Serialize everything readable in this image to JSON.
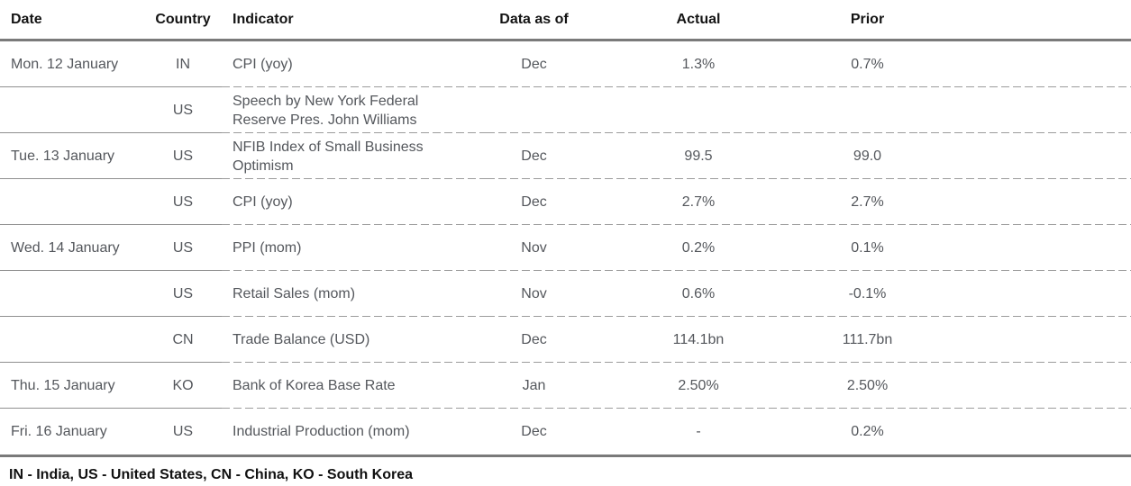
{
  "table": {
    "columns": {
      "date": "Date",
      "country": "Country",
      "indicator": "Indicator",
      "data_as_of": "Data as of",
      "actual": "Actual",
      "prior": "Prior"
    },
    "rows": [
      {
        "date": "Mon. 12 January",
        "country": "IN",
        "indicator": "CPI (yoy)",
        "data_as_of": "Dec",
        "actual": "1.3%",
        "prior": "0.7%"
      },
      {
        "date": "",
        "country": "US",
        "indicator": "Speech by New York Federal Reserve Pres. John Williams",
        "data_as_of": "",
        "actual": "",
        "prior": ""
      },
      {
        "date": "Tue. 13 January",
        "country": "US",
        "indicator": "NFIB Index of Small Business Optimism",
        "data_as_of": "Dec",
        "actual": "99.5",
        "prior": "99.0"
      },
      {
        "date": "",
        "country": "US",
        "indicator": "CPI (yoy)",
        "data_as_of": "Dec",
        "actual": "2.7%",
        "prior": "2.7%"
      },
      {
        "date": "Wed. 14 January",
        "country": "US",
        "indicator": "PPI (mom)",
        "data_as_of": "Nov",
        "actual": "0.2%",
        "prior": "0.1%"
      },
      {
        "date": "",
        "country": "US",
        "indicator": "Retail Sales (mom)",
        "data_as_of": "Nov",
        "actual": "0.6%",
        "prior": "-0.1%"
      },
      {
        "date": "",
        "country": "CN",
        "indicator": "Trade Balance (USD)",
        "data_as_of": "Dec",
        "actual": "114.1bn",
        "prior": "111.7bn"
      },
      {
        "date": "Thu. 15 January",
        "country": "KO",
        "indicator": "Bank of Korea Base Rate",
        "data_as_of": "Jan",
        "actual": "2.50%",
        "prior": "2.50%"
      },
      {
        "date": "Fri. 16 January",
        "country": "US",
        "indicator": "Industrial Production (mom)",
        "data_as_of": "Dec",
        "actual": "-",
        "prior": "0.2%"
      }
    ],
    "footnote": "IN - India, US - United States, CN - China, KO - South Korea"
  },
  "colors": {
    "header_text": "#141414",
    "body_text": "#54575c",
    "thick_rule": "#7a7a7a",
    "solid_separator": "#8f8f8f",
    "dashed_separator": "#9c9c9c",
    "background": "#ffffff"
  }
}
